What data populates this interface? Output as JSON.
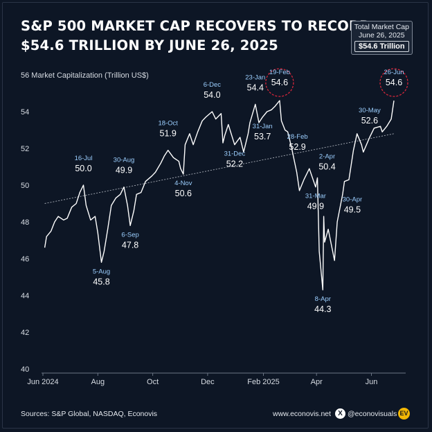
{
  "header": {
    "title_line1": "S&P 500 MARKET CAP RECOVERS TO RECORD",
    "title_line2": "$54.6 TRILLION BY JUNE 26, 2025"
  },
  "badge": {
    "line1": "Total Market Cap",
    "line2": "June 26, 2025",
    "value": "$54.6 Trillion"
  },
  "footer": {
    "source": "Sources: S&P Global, NASDAQ, Econovis",
    "site": "www.econovis.net",
    "x_glyph": "X",
    "handle": "@econovisuals",
    "logo": "EV"
  },
  "colors": {
    "background": "#0d1625",
    "line": "#ffffff",
    "label_date": "#9ccfff",
    "highlight_circle": "#d3263a",
    "trend": "#c9ced6",
    "axis_text": "#d7dce3"
  },
  "chart_data": {
    "type": "line",
    "ylabel": "Market Capitalization (Trillion US$)",
    "ylim": [
      40,
      56
    ],
    "yticks": [
      40,
      42,
      44,
      46,
      48,
      50,
      52,
      54,
      56
    ],
    "xlim": [
      "2024-06-01",
      "2025-07-06"
    ],
    "xticks": [
      {
        "date": "2024-06-01",
        "label": "Jun 2024"
      },
      {
        "date": "2024-08-01",
        "label": "Aug"
      },
      {
        "date": "2024-10-01",
        "label": "Oct"
      },
      {
        "date": "2024-12-01",
        "label": "Dec"
      },
      {
        "date": "2025-02-01",
        "label": "Feb 2025"
      },
      {
        "date": "2025-04-01",
        "label": "Apr"
      },
      {
        "date": "2025-06-01",
        "label": "Jun"
      }
    ],
    "grid": false,
    "trend_line": {
      "start": [
        "2024-06-03",
        49.0
      ],
      "end": [
        "2025-06-26",
        52.8
      ]
    },
    "series": [
      {
        "points": [
          [
            "2024-06-03",
            46.6
          ],
          [
            "2024-06-05",
            47.2
          ],
          [
            "2024-06-10",
            47.5
          ],
          [
            "2024-06-14",
            48.0
          ],
          [
            "2024-06-18",
            48.3
          ],
          [
            "2024-06-24",
            48.1
          ],
          [
            "2024-06-28",
            48.2
          ],
          [
            "2024-07-03",
            48.8
          ],
          [
            "2024-07-08",
            49.0
          ],
          [
            "2024-07-12",
            49.6
          ],
          [
            "2024-07-16",
            50.0
          ],
          [
            "2024-07-19",
            48.9
          ],
          [
            "2024-07-24",
            48.1
          ],
          [
            "2024-07-29",
            48.3
          ],
          [
            "2024-08-01",
            47.4
          ],
          [
            "2024-08-05",
            45.8
          ],
          [
            "2024-08-08",
            46.4
          ],
          [
            "2024-08-12",
            47.6
          ],
          [
            "2024-08-16",
            48.9
          ],
          [
            "2024-08-21",
            49.3
          ],
          [
            "2024-08-26",
            49.5
          ],
          [
            "2024-08-30",
            49.9
          ],
          [
            "2024-09-03",
            48.9
          ],
          [
            "2024-09-06",
            47.8
          ],
          [
            "2024-09-10",
            48.6
          ],
          [
            "2024-09-13",
            49.5
          ],
          [
            "2024-09-18",
            49.6
          ],
          [
            "2024-09-23",
            50.2
          ],
          [
            "2024-09-30",
            50.5
          ],
          [
            "2024-10-04",
            50.7
          ],
          [
            "2024-10-10",
            51.2
          ],
          [
            "2024-10-14",
            51.6
          ],
          [
            "2024-10-18",
            51.9
          ],
          [
            "2024-10-24",
            51.5
          ],
          [
            "2024-10-30",
            51.3
          ],
          [
            "2024-11-01",
            50.9
          ],
          [
            "2024-11-04",
            50.6
          ],
          [
            "2024-11-06",
            52.2
          ],
          [
            "2024-11-11",
            52.8
          ],
          [
            "2024-11-15",
            52.2
          ],
          [
            "2024-11-20",
            52.9
          ],
          [
            "2024-11-25",
            53.5
          ],
          [
            "2024-11-29",
            53.7
          ],
          [
            "2024-12-06",
            54.0
          ],
          [
            "2024-12-10",
            53.6
          ],
          [
            "2024-12-16",
            53.9
          ],
          [
            "2024-12-18",
            52.3
          ],
          [
            "2024-12-20",
            52.7
          ],
          [
            "2024-12-24",
            53.3
          ],
          [
            "2024-12-31",
            52.2
          ],
          [
            "2025-01-06",
            52.6
          ],
          [
            "2025-01-10",
            51.8
          ],
          [
            "2025-01-15",
            52.8
          ],
          [
            "2025-01-17",
            53.4
          ],
          [
            "2025-01-23",
            54.4
          ],
          [
            "2025-01-27",
            53.4
          ],
          [
            "2025-01-31",
            53.7
          ],
          [
            "2025-02-05",
            54.0
          ],
          [
            "2025-02-10",
            54.1
          ],
          [
            "2025-02-14",
            54.3
          ],
          [
            "2025-02-19",
            54.6
          ],
          [
            "2025-02-21",
            53.5
          ],
          [
            "2025-02-25",
            53.0
          ],
          [
            "2025-02-28",
            52.9
          ],
          [
            "2025-03-04",
            52.1
          ],
          [
            "2025-03-10",
            50.7
          ],
          [
            "2025-03-13",
            49.7
          ],
          [
            "2025-03-18",
            50.3
          ],
          [
            "2025-03-24",
            50.9
          ],
          [
            "2025-03-31",
            49.9
          ],
          [
            "2025-04-02",
            50.4
          ],
          [
            "2025-04-04",
            46.4
          ],
          [
            "2025-04-08",
            44.3
          ],
          [
            "2025-04-09",
            48.3
          ],
          [
            "2025-04-10",
            46.9
          ],
          [
            "2025-04-14",
            47.6
          ],
          [
            "2025-04-21",
            45.9
          ],
          [
            "2025-04-24",
            48.0
          ],
          [
            "2025-04-30",
            49.5
          ],
          [
            "2025-05-02",
            50.2
          ],
          [
            "2025-05-07",
            50.3
          ],
          [
            "2025-05-12",
            51.9
          ],
          [
            "2025-05-16",
            52.8
          ],
          [
            "2025-05-21",
            52.2
          ],
          [
            "2025-05-23",
            51.8
          ],
          [
            "2025-05-30",
            52.6
          ],
          [
            "2025-06-04",
            53.1
          ],
          [
            "2025-06-11",
            53.2
          ],
          [
            "2025-06-13",
            52.9
          ],
          [
            "2025-06-18",
            53.2
          ],
          [
            "2025-06-23",
            53.6
          ],
          [
            "2025-06-26",
            54.6
          ]
        ]
      }
    ],
    "annotations": [
      {
        "date": "2024-07-16",
        "value": 50.0,
        "label_date": "16-Jul",
        "label_value": "50.0",
        "pos": "above"
      },
      {
        "date": "2024-08-05",
        "value": 45.8,
        "label_date": "5-Aug",
        "label_value": "45.8",
        "pos": "below"
      },
      {
        "date": "2024-08-30",
        "value": 49.9,
        "label_date": "30-Aug",
        "label_value": "49.9",
        "pos": "above"
      },
      {
        "date": "2024-09-06",
        "value": 47.8,
        "label_date": "6-Sep",
        "label_value": "47.8",
        "pos": "below"
      },
      {
        "date": "2024-10-18",
        "value": 51.9,
        "label_date": "18-Oct",
        "label_value": "51.9",
        "pos": "above"
      },
      {
        "date": "2024-11-04",
        "value": 50.6,
        "label_date": "4-Nov",
        "label_value": "50.6",
        "pos": "below"
      },
      {
        "date": "2024-12-06",
        "value": 54.0,
        "label_date": "6-Dec",
        "label_value": "54.0",
        "pos": "above"
      },
      {
        "date": "2024-12-31",
        "value": 52.2,
        "label_date": "31-Dec",
        "label_value": "52.2",
        "pos": "below"
      },
      {
        "date": "2025-01-23",
        "value": 54.4,
        "label_date": "23-Jan",
        "label_value": "54.4",
        "pos": "above"
      },
      {
        "date": "2025-01-31",
        "value": 53.7,
        "label_date": "31-Jan",
        "label_value": "53.7",
        "pos": "below"
      },
      {
        "date": "2025-02-19",
        "value": 54.6,
        "label_date": "19-Feb",
        "label_value": "54.6",
        "pos": "circle"
      },
      {
        "date": "2025-02-28",
        "value": 52.9,
        "label_date": "28-Feb",
        "label_value": "52.9",
        "pos": "right"
      },
      {
        "date": "2025-03-31",
        "value": 49.9,
        "label_date": "31-Mar",
        "label_value": "49.9",
        "pos": "below"
      },
      {
        "date": "2025-04-02",
        "value": 50.4,
        "label_date": "2-Apr",
        "label_value": "50.4",
        "pos": "above-right"
      },
      {
        "date": "2025-04-08",
        "value": 44.3,
        "label_date": "8-Apr",
        "label_value": "44.3",
        "pos": "below"
      },
      {
        "date": "2025-04-30",
        "value": 49.5,
        "label_date": "30-Apr",
        "label_value": "49.5",
        "pos": "right"
      },
      {
        "date": "2025-05-30",
        "value": 52.6,
        "label_date": "30-May",
        "label_value": "52.6",
        "pos": "above"
      },
      {
        "date": "2025-06-26",
        "value": 54.6,
        "label_date": "26-Jun",
        "label_value": "54.6",
        "pos": "circle"
      }
    ]
  }
}
